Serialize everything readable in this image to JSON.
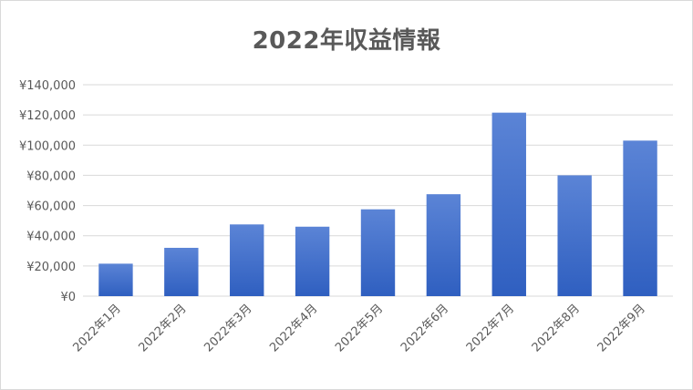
{
  "chart_data": {
    "type": "bar",
    "title": "2022年収益情報",
    "categories": [
      "2022年1月",
      "2022年2月",
      "2022年3月",
      "2022年4月",
      "2022年5月",
      "2022年6月",
      "2022年7月",
      "2022年8月",
      "2022年9月"
    ],
    "values": [
      21500,
      32000,
      47500,
      46000,
      57500,
      67500,
      121500,
      80000,
      103000
    ],
    "ylim": [
      0,
      140000
    ],
    "yticks": [
      0,
      20000,
      40000,
      60000,
      80000,
      100000,
      120000,
      140000
    ],
    "ytick_labels": [
      "¥0",
      "¥20,000",
      "¥40,000",
      "¥60,000",
      "¥80,000",
      "¥100,000",
      "¥120,000",
      "¥140,000"
    ],
    "grid": true,
    "legend": "none",
    "colors": {
      "bar_top": "#5b84d6",
      "bar_bottom": "#2f5fc0",
      "grid": "#d9d9d9",
      "axis_text": "#595959",
      "title": "#595959"
    }
  }
}
